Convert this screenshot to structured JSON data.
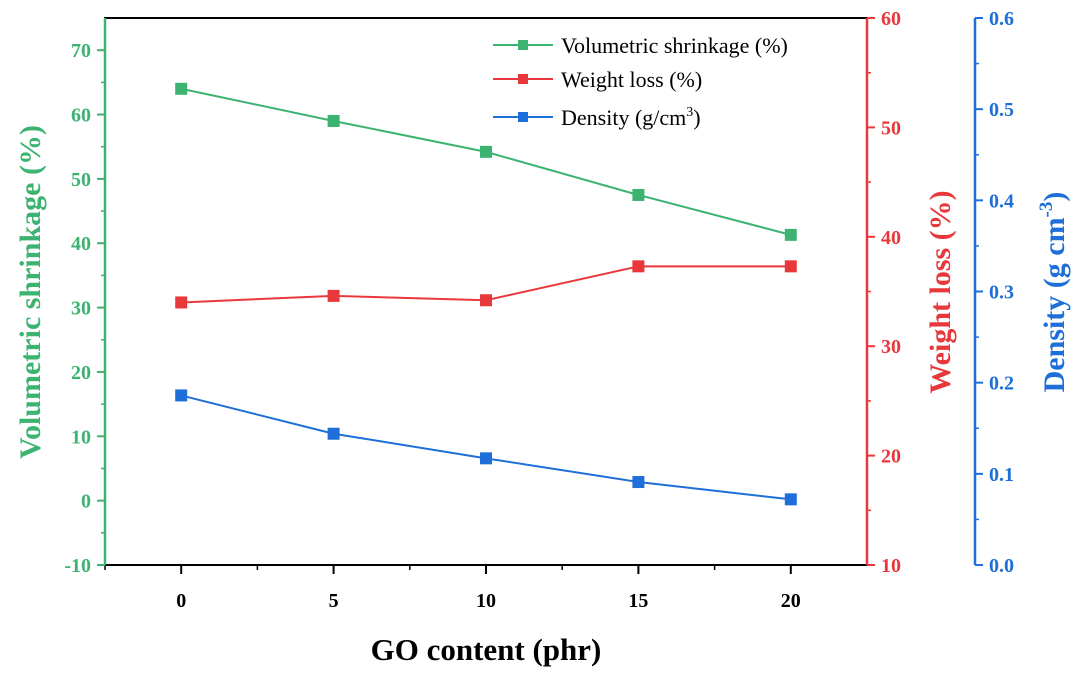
{
  "chart_data": {
    "type": "line",
    "xlabel": "GO content (phr)",
    "x": [
      0,
      5,
      10,
      15,
      20
    ],
    "x_ticks": [
      "0",
      "5",
      "10",
      "15",
      "20"
    ],
    "xlim": [
      -2.5,
      22.5
    ],
    "grid": false,
    "legend_position": "top-right",
    "axes": {
      "left": {
        "label": "Volumetric shrinkage (%)",
        "ylim": [
          -10,
          75
        ],
        "ticks": [
          "-10",
          "0",
          "10",
          "20",
          "30",
          "40",
          "50",
          "60",
          "70"
        ],
        "color": "#3cb371"
      },
      "right1": {
        "label": "Weight loss (%)",
        "ylim": [
          10,
          60
        ],
        "ticks": [
          "10",
          "20",
          "30",
          "40",
          "50",
          "60"
        ],
        "color": "#e8383b"
      },
      "right2": {
        "label_main": "Density (g cm",
        "label_sup": "-3",
        "label_end": ")",
        "ylim": [
          0.0,
          0.6
        ],
        "ticks": [
          "0.0",
          "0.1",
          "0.2",
          "0.3",
          "0.4",
          "0.5",
          "0.6"
        ],
        "color": "#1e6fd9"
      }
    },
    "series": [
      {
        "name": "Volumetric shrinkage (%)",
        "axis": "left",
        "color": "#3cb371",
        "values": [
          64.0,
          59.0,
          54.2,
          47.5,
          41.3
        ]
      },
      {
        "name": "Weight loss (%)",
        "axis": "right1",
        "color": "#e8383b",
        "values": [
          34.0,
          34.6,
          34.2,
          37.3,
          37.3
        ]
      },
      {
        "name": "Density (g/cm",
        "name_sup": "3",
        "name_end": ")",
        "axis": "right2",
        "color": "#1e6fd9",
        "values": [
          0.186,
          0.144,
          0.117,
          0.091,
          0.072
        ]
      }
    ]
  }
}
